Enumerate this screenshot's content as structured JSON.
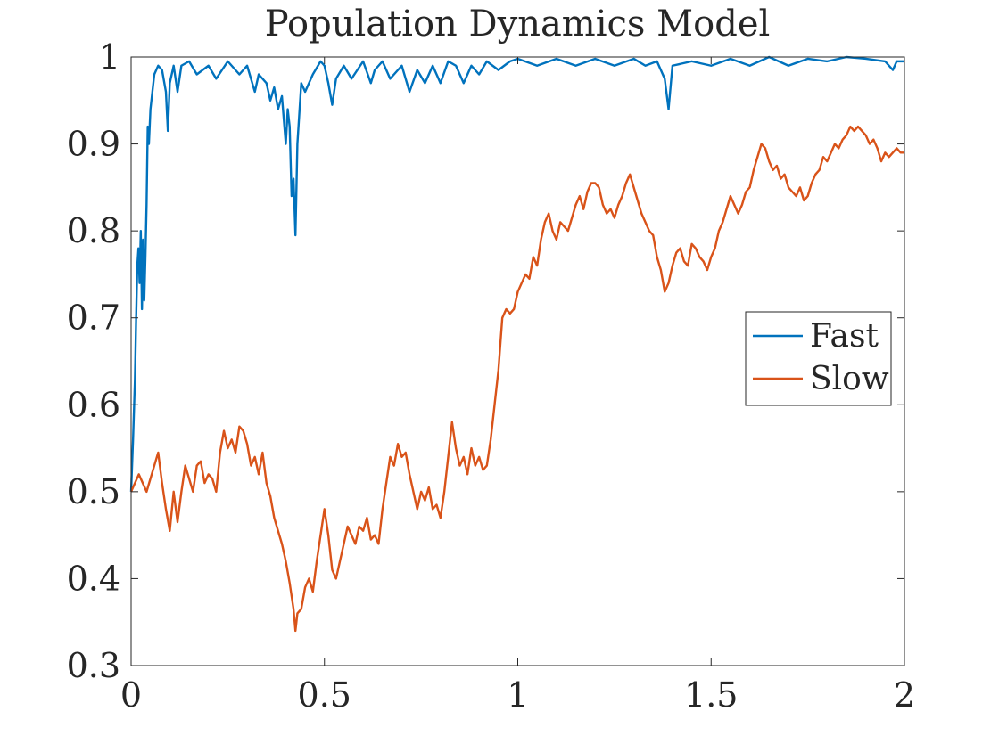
{
  "chart_data": {
    "type": "line",
    "title": "Population Dynamics Model",
    "xlabel": "",
    "ylabel": "",
    "xlim": [
      0,
      2
    ],
    "ylim": [
      0.3,
      1
    ],
    "xticks": [
      0,
      0.5,
      1,
      1.5,
      2
    ],
    "xtick_labels": [
      "0",
      "0.5",
      "1",
      "1.5",
      "2"
    ],
    "yticks": [
      0.3,
      0.4,
      0.5,
      0.6,
      0.7,
      0.8,
      0.9,
      1
    ],
    "ytick_labels": [
      "0.3",
      "0.4",
      "0.5",
      "0.6",
      "0.7",
      "0.8",
      "0.9",
      "1"
    ],
    "grid": false,
    "legend_position": "right",
    "series": [
      {
        "name": "Fast",
        "color": "#0072BD",
        "points": [
          [
            0.0,
            0.5
          ],
          [
            0.005,
            0.56
          ],
          [
            0.01,
            0.63
          ],
          [
            0.013,
            0.7
          ],
          [
            0.016,
            0.76
          ],
          [
            0.019,
            0.78
          ],
          [
            0.022,
            0.74
          ],
          [
            0.025,
            0.8
          ],
          [
            0.028,
            0.71
          ],
          [
            0.031,
            0.79
          ],
          [
            0.034,
            0.72
          ],
          [
            0.037,
            0.77
          ],
          [
            0.04,
            0.83
          ],
          [
            0.043,
            0.92
          ],
          [
            0.046,
            0.9
          ],
          [
            0.05,
            0.94
          ],
          [
            0.055,
            0.96
          ],
          [
            0.06,
            0.98
          ],
          [
            0.07,
            0.99
          ],
          [
            0.08,
            0.985
          ],
          [
            0.09,
            0.96
          ],
          [
            0.095,
            0.915
          ],
          [
            0.1,
            0.97
          ],
          [
            0.11,
            0.99
          ],
          [
            0.12,
            0.96
          ],
          [
            0.13,
            0.99
          ],
          [
            0.15,
            0.995
          ],
          [
            0.17,
            0.98
          ],
          [
            0.2,
            0.99
          ],
          [
            0.22,
            0.975
          ],
          [
            0.25,
            0.995
          ],
          [
            0.28,
            0.98
          ],
          [
            0.3,
            0.99
          ],
          [
            0.32,
            0.96
          ],
          [
            0.33,
            0.98
          ],
          [
            0.35,
            0.97
          ],
          [
            0.36,
            0.95
          ],
          [
            0.37,
            0.965
          ],
          [
            0.38,
            0.94
          ],
          [
            0.39,
            0.955
          ],
          [
            0.4,
            0.9
          ],
          [
            0.405,
            0.94
          ],
          [
            0.41,
            0.92
          ],
          [
            0.415,
            0.84
          ],
          [
            0.42,
            0.86
          ],
          [
            0.425,
            0.795
          ],
          [
            0.43,
            0.9
          ],
          [
            0.44,
            0.97
          ],
          [
            0.45,
            0.96
          ],
          [
            0.47,
            0.98
          ],
          [
            0.49,
            0.995
          ],
          [
            0.5,
            0.99
          ],
          [
            0.51,
            0.97
          ],
          [
            0.52,
            0.945
          ],
          [
            0.53,
            0.975
          ],
          [
            0.55,
            0.99
          ],
          [
            0.57,
            0.975
          ],
          [
            0.6,
            0.995
          ],
          [
            0.62,
            0.97
          ],
          [
            0.63,
            0.985
          ],
          [
            0.65,
            0.995
          ],
          [
            0.67,
            0.975
          ],
          [
            0.7,
            0.99
          ],
          [
            0.72,
            0.96
          ],
          [
            0.74,
            0.985
          ],
          [
            0.76,
            0.97
          ],
          [
            0.78,
            0.99
          ],
          [
            0.8,
            0.97
          ],
          [
            0.82,
            0.995
          ],
          [
            0.84,
            0.99
          ],
          [
            0.86,
            0.97
          ],
          [
            0.88,
            0.99
          ],
          [
            0.9,
            0.98
          ],
          [
            0.92,
            0.995
          ],
          [
            0.95,
            0.985
          ],
          [
            0.98,
            0.995
          ],
          [
            1.0,
            0.998
          ],
          [
            1.05,
            0.99
          ],
          [
            1.1,
            0.998
          ],
          [
            1.15,
            0.99
          ],
          [
            1.2,
            0.998
          ],
          [
            1.25,
            0.99
          ],
          [
            1.3,
            0.998
          ],
          [
            1.33,
            0.99
          ],
          [
            1.36,
            0.995
          ],
          [
            1.38,
            0.975
          ],
          [
            1.39,
            0.94
          ],
          [
            1.4,
            0.99
          ],
          [
            1.45,
            0.995
          ],
          [
            1.5,
            0.99
          ],
          [
            1.55,
            0.998
          ],
          [
            1.6,
            0.99
          ],
          [
            1.65,
            1.0
          ],
          [
            1.7,
            0.99
          ],
          [
            1.75,
            0.998
          ],
          [
            1.8,
            0.995
          ],
          [
            1.85,
            1.0
          ],
          [
            1.9,
            0.998
          ],
          [
            1.95,
            0.995
          ],
          [
            1.97,
            0.985
          ],
          [
            1.98,
            0.995
          ],
          [
            2.0,
            0.995
          ]
        ]
      },
      {
        "name": "Slow",
        "color": "#D95319",
        "points": [
          [
            0.0,
            0.5
          ],
          [
            0.02,
            0.52
          ],
          [
            0.04,
            0.5
          ],
          [
            0.06,
            0.53
          ],
          [
            0.07,
            0.545
          ],
          [
            0.08,
            0.51
          ],
          [
            0.09,
            0.48
          ],
          [
            0.1,
            0.455
          ],
          [
            0.11,
            0.5
          ],
          [
            0.12,
            0.465
          ],
          [
            0.13,
            0.5
          ],
          [
            0.14,
            0.53
          ],
          [
            0.15,
            0.515
          ],
          [
            0.16,
            0.5
          ],
          [
            0.17,
            0.53
          ],
          [
            0.18,
            0.535
          ],
          [
            0.19,
            0.51
          ],
          [
            0.2,
            0.52
          ],
          [
            0.21,
            0.515
          ],
          [
            0.22,
            0.5
          ],
          [
            0.23,
            0.545
          ],
          [
            0.24,
            0.57
          ],
          [
            0.25,
            0.55
          ],
          [
            0.26,
            0.56
          ],
          [
            0.27,
            0.545
          ],
          [
            0.28,
            0.575
          ],
          [
            0.29,
            0.57
          ],
          [
            0.3,
            0.555
          ],
          [
            0.31,
            0.53
          ],
          [
            0.32,
            0.54
          ],
          [
            0.33,
            0.52
          ],
          [
            0.34,
            0.545
          ],
          [
            0.35,
            0.51
          ],
          [
            0.36,
            0.495
          ],
          [
            0.37,
            0.47
          ],
          [
            0.38,
            0.455
          ],
          [
            0.39,
            0.44
          ],
          [
            0.4,
            0.42
          ],
          [
            0.41,
            0.395
          ],
          [
            0.42,
            0.365
          ],
          [
            0.425,
            0.34
          ],
          [
            0.43,
            0.36
          ],
          [
            0.44,
            0.365
          ],
          [
            0.45,
            0.39
          ],
          [
            0.46,
            0.4
          ],
          [
            0.47,
            0.385
          ],
          [
            0.48,
            0.42
          ],
          [
            0.49,
            0.45
          ],
          [
            0.5,
            0.48
          ],
          [
            0.51,
            0.45
          ],
          [
            0.52,
            0.41
          ],
          [
            0.53,
            0.4
          ],
          [
            0.54,
            0.42
          ],
          [
            0.55,
            0.44
          ],
          [
            0.56,
            0.46
          ],
          [
            0.57,
            0.45
          ],
          [
            0.58,
            0.44
          ],
          [
            0.59,
            0.46
          ],
          [
            0.6,
            0.455
          ],
          [
            0.61,
            0.47
          ],
          [
            0.62,
            0.445
          ],
          [
            0.63,
            0.45
          ],
          [
            0.64,
            0.44
          ],
          [
            0.65,
            0.48
          ],
          [
            0.66,
            0.51
          ],
          [
            0.67,
            0.54
          ],
          [
            0.68,
            0.53
          ],
          [
            0.69,
            0.555
          ],
          [
            0.7,
            0.54
          ],
          [
            0.71,
            0.545
          ],
          [
            0.72,
            0.52
          ],
          [
            0.73,
            0.5
          ],
          [
            0.74,
            0.48
          ],
          [
            0.75,
            0.5
          ],
          [
            0.76,
            0.49
          ],
          [
            0.77,
            0.505
          ],
          [
            0.78,
            0.48
          ],
          [
            0.79,
            0.485
          ],
          [
            0.8,
            0.47
          ],
          [
            0.81,
            0.5
          ],
          [
            0.82,
            0.54
          ],
          [
            0.83,
            0.58
          ],
          [
            0.84,
            0.55
          ],
          [
            0.85,
            0.53
          ],
          [
            0.86,
            0.54
          ],
          [
            0.87,
            0.52
          ],
          [
            0.88,
            0.55
          ],
          [
            0.89,
            0.53
          ],
          [
            0.9,
            0.54
          ],
          [
            0.91,
            0.525
          ],
          [
            0.92,
            0.53
          ],
          [
            0.93,
            0.56
          ],
          [
            0.94,
            0.6
          ],
          [
            0.95,
            0.64
          ],
          [
            0.96,
            0.7
          ],
          [
            0.97,
            0.71
          ],
          [
            0.98,
            0.705
          ],
          [
            0.99,
            0.71
          ],
          [
            1.0,
            0.73
          ],
          [
            1.01,
            0.74
          ],
          [
            1.02,
            0.75
          ],
          [
            1.03,
            0.745
          ],
          [
            1.04,
            0.77
          ],
          [
            1.05,
            0.76
          ],
          [
            1.06,
            0.79
          ],
          [
            1.07,
            0.81
          ],
          [
            1.08,
            0.82
          ],
          [
            1.09,
            0.8
          ],
          [
            1.1,
            0.79
          ],
          [
            1.11,
            0.81
          ],
          [
            1.12,
            0.805
          ],
          [
            1.13,
            0.8
          ],
          [
            1.14,
            0.815
          ],
          [
            1.15,
            0.83
          ],
          [
            1.16,
            0.84
          ],
          [
            1.17,
            0.825
          ],
          [
            1.18,
            0.845
          ],
          [
            1.19,
            0.855
          ],
          [
            1.2,
            0.855
          ],
          [
            1.21,
            0.85
          ],
          [
            1.22,
            0.83
          ],
          [
            1.23,
            0.82
          ],
          [
            1.24,
            0.825
          ],
          [
            1.25,
            0.815
          ],
          [
            1.26,
            0.83
          ],
          [
            1.27,
            0.84
          ],
          [
            1.28,
            0.855
          ],
          [
            1.29,
            0.865
          ],
          [
            1.3,
            0.85
          ],
          [
            1.31,
            0.835
          ],
          [
            1.32,
            0.82
          ],
          [
            1.33,
            0.81
          ],
          [
            1.34,
            0.8
          ],
          [
            1.35,
            0.795
          ],
          [
            1.36,
            0.77
          ],
          [
            1.37,
            0.755
          ],
          [
            1.38,
            0.73
          ],
          [
            1.39,
            0.74
          ],
          [
            1.4,
            0.76
          ],
          [
            1.41,
            0.775
          ],
          [
            1.42,
            0.78
          ],
          [
            1.43,
            0.765
          ],
          [
            1.44,
            0.76
          ],
          [
            1.45,
            0.785
          ],
          [
            1.46,
            0.78
          ],
          [
            1.47,
            0.77
          ],
          [
            1.48,
            0.765
          ],
          [
            1.49,
            0.755
          ],
          [
            1.5,
            0.77
          ],
          [
            1.51,
            0.78
          ],
          [
            1.52,
            0.8
          ],
          [
            1.53,
            0.81
          ],
          [
            1.54,
            0.825
          ],
          [
            1.55,
            0.84
          ],
          [
            1.56,
            0.83
          ],
          [
            1.57,
            0.82
          ],
          [
            1.58,
            0.83
          ],
          [
            1.59,
            0.845
          ],
          [
            1.6,
            0.85
          ],
          [
            1.61,
            0.87
          ],
          [
            1.62,
            0.885
          ],
          [
            1.63,
            0.9
          ],
          [
            1.64,
            0.895
          ],
          [
            1.65,
            0.88
          ],
          [
            1.66,
            0.87
          ],
          [
            1.67,
            0.875
          ],
          [
            1.68,
            0.86
          ],
          [
            1.69,
            0.865
          ],
          [
            1.7,
            0.85
          ],
          [
            1.71,
            0.845
          ],
          [
            1.72,
            0.84
          ],
          [
            1.73,
            0.85
          ],
          [
            1.74,
            0.835
          ],
          [
            1.75,
            0.84
          ],
          [
            1.76,
            0.855
          ],
          [
            1.77,
            0.865
          ],
          [
            1.78,
            0.87
          ],
          [
            1.79,
            0.885
          ],
          [
            1.8,
            0.88
          ],
          [
            1.81,
            0.89
          ],
          [
            1.82,
            0.9
          ],
          [
            1.83,
            0.895
          ],
          [
            1.84,
            0.905
          ],
          [
            1.85,
            0.91
          ],
          [
            1.86,
            0.92
          ],
          [
            1.87,
            0.915
          ],
          [
            1.88,
            0.92
          ],
          [
            1.89,
            0.915
          ],
          [
            1.9,
            0.91
          ],
          [
            1.91,
            0.9
          ],
          [
            1.92,
            0.905
          ],
          [
            1.93,
            0.895
          ],
          [
            1.94,
            0.88
          ],
          [
            1.95,
            0.89
          ],
          [
            1.96,
            0.885
          ],
          [
            1.97,
            0.89
          ],
          [
            1.98,
            0.895
          ],
          [
            1.99,
            0.89
          ],
          [
            2.0,
            0.89
          ]
        ]
      }
    ]
  }
}
